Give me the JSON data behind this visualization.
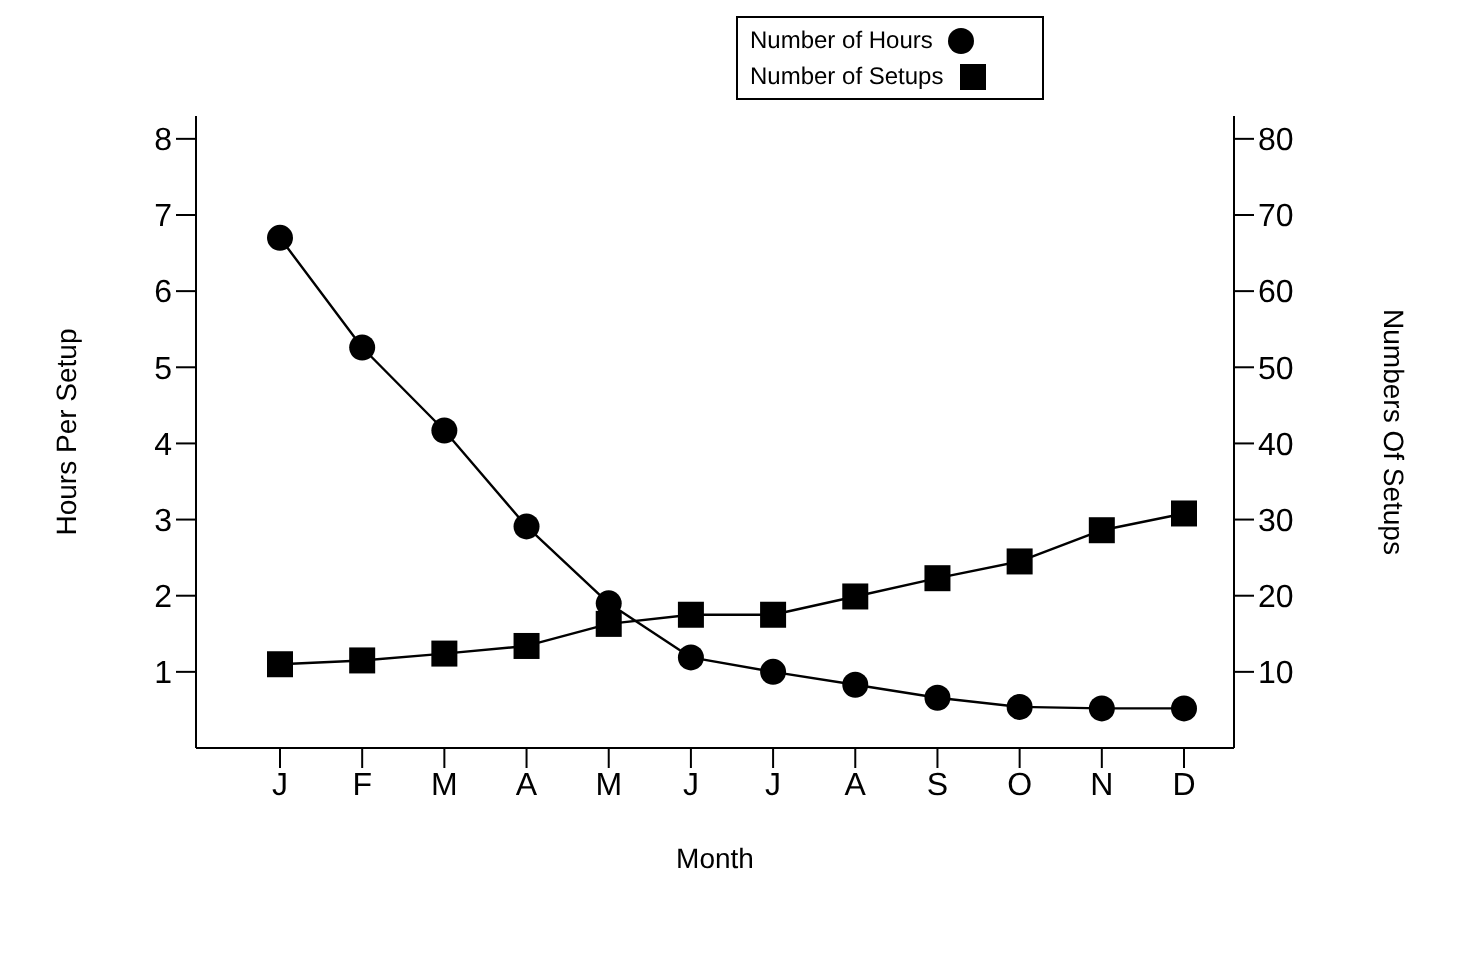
{
  "chart_data": {
    "type": "line",
    "xlabel": "Month",
    "ylabel": "Hours Per Setup",
    "y2label": "Numbers Of Setups",
    "categories": [
      "J",
      "F",
      "M",
      "A",
      "M",
      "J",
      "J",
      "A",
      "S",
      "O",
      "N",
      "D"
    ],
    "series": [
      {
        "name": "Number of Hours",
        "color": "#000000",
        "marker": "circle",
        "values": [
          6.7,
          5.26,
          4.17,
          2.91,
          1.9,
          1.19,
          1.0,
          0.83,
          0.66,
          0.54,
          0.52,
          0.52
        ]
      },
      {
        "name": "Number of Setups",
        "color": "#000000",
        "marker": "square",
        "axis": "y2",
        "values": [
          11,
          11.5,
          12.4,
          13.4,
          16.3,
          17.5,
          17.5,
          19.9,
          22.3,
          24.5,
          28.6,
          30.8
        ]
      }
    ],
    "ylim": [
      0,
      8.3
    ],
    "yticks": [
      1,
      2,
      3,
      4,
      5,
      6,
      7,
      8
    ],
    "y2lim": [
      0,
      83
    ],
    "y2ticks": [
      10,
      20,
      30,
      40,
      50,
      60,
      70,
      80
    ],
    "grid": false,
    "legend": "top right",
    "line_style": "solid"
  }
}
